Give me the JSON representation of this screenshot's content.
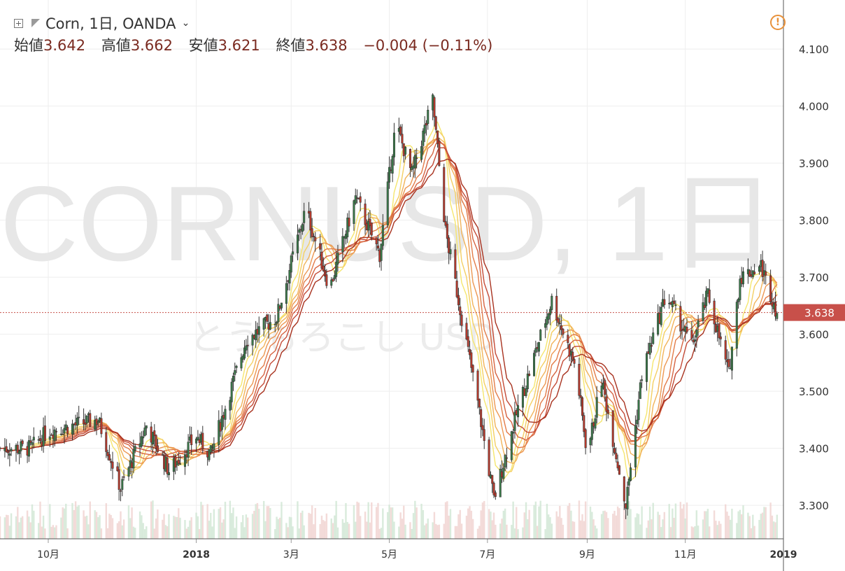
{
  "symbol_title": "Corn, 1日, OANDA",
  "ohlc": {
    "open_label": "始値",
    "open": "3.642",
    "high_label": "高値",
    "high": "3.662",
    "low_label": "安値",
    "low": "3.621",
    "close_label": "終値",
    "close": "3.638",
    "change": "−0.004 (−0.11%)"
  },
  "icons": {
    "alert": "alert-circle-icon",
    "add": "plus-square-icon",
    "flag": "flag-icon",
    "dropdown": "chevron-down-icon"
  },
  "watermark": {
    "main": "CORNUSD, 1日",
    "sub": "とうもろこし USD"
  },
  "colors": {
    "up": "#3a7d4a",
    "down": "#c0392b",
    "ribbon_fast": "#f4e46a",
    "ribbon_slow": "#a82a1e",
    "price_tag": "#c8504a"
  },
  "chart_data": {
    "type": "candlestick",
    "title": "Corn, 1日, OANDA",
    "ylim": [
      3.24,
      4.16
    ],
    "yticks": [
      "3.300",
      "3.400",
      "3.500",
      "3.600",
      "3.700",
      "3.800",
      "3.900",
      "4.000",
      "4.100"
    ],
    "xticks": [
      "10月",
      "2018",
      "3月",
      "5月",
      "7月",
      "9月",
      "11月",
      "2019"
    ],
    "last_price": "3.638",
    "indicators": "moving-average ribbon (8 lines, yellow to red) and volume histogram",
    "price_path_approx": [
      {
        "date": "2017-09-20",
        "close": 3.4
      },
      {
        "date": "2017-10-01",
        "close": 3.43
      },
      {
        "date": "2017-11-01",
        "close": 3.45
      },
      {
        "date": "2017-11-15",
        "close": 3.33
      },
      {
        "date": "2017-12-01",
        "close": 3.44
      },
      {
        "date": "2017-12-15",
        "close": 3.36
      },
      {
        "date": "2018-01-01",
        "close": 3.42
      },
      {
        "date": "2018-01-10",
        "close": 3.39
      },
      {
        "date": "2018-02-01",
        "close": 3.59
      },
      {
        "date": "2018-02-20",
        "close": 3.63
      },
      {
        "date": "2018-03-10",
        "close": 3.82
      },
      {
        "date": "2018-03-25",
        "close": 3.68
      },
      {
        "date": "2018-04-10",
        "close": 3.84
      },
      {
        "date": "2018-04-25",
        "close": 3.74
      },
      {
        "date": "2018-05-05",
        "close": 3.97
      },
      {
        "date": "2018-05-15",
        "close": 3.88
      },
      {
        "date": "2018-05-28",
        "close": 4.01
      },
      {
        "date": "2018-06-05",
        "close": 3.78
      },
      {
        "date": "2018-06-25",
        "close": 3.48
      },
      {
        "date": "2018-07-05",
        "close": 3.31
      },
      {
        "date": "2018-07-20",
        "close": 3.47
      },
      {
        "date": "2018-08-10",
        "close": 3.66
      },
      {
        "date": "2018-08-25",
        "close": 3.54
      },
      {
        "date": "2018-09-01",
        "close": 3.39
      },
      {
        "date": "2018-09-10",
        "close": 3.52
      },
      {
        "date": "2018-09-25",
        "close": 3.3
      },
      {
        "date": "2018-10-05",
        "close": 3.53
      },
      {
        "date": "2018-10-20",
        "close": 3.67
      },
      {
        "date": "2018-11-05",
        "close": 3.58
      },
      {
        "date": "2018-11-15",
        "close": 3.67
      },
      {
        "date": "2018-11-28",
        "close": 3.53
      },
      {
        "date": "2018-12-05",
        "close": 3.7
      },
      {
        "date": "2018-12-18",
        "close": 3.72
      },
      {
        "date": "2018-12-28",
        "close": 3.638
      }
    ]
  }
}
